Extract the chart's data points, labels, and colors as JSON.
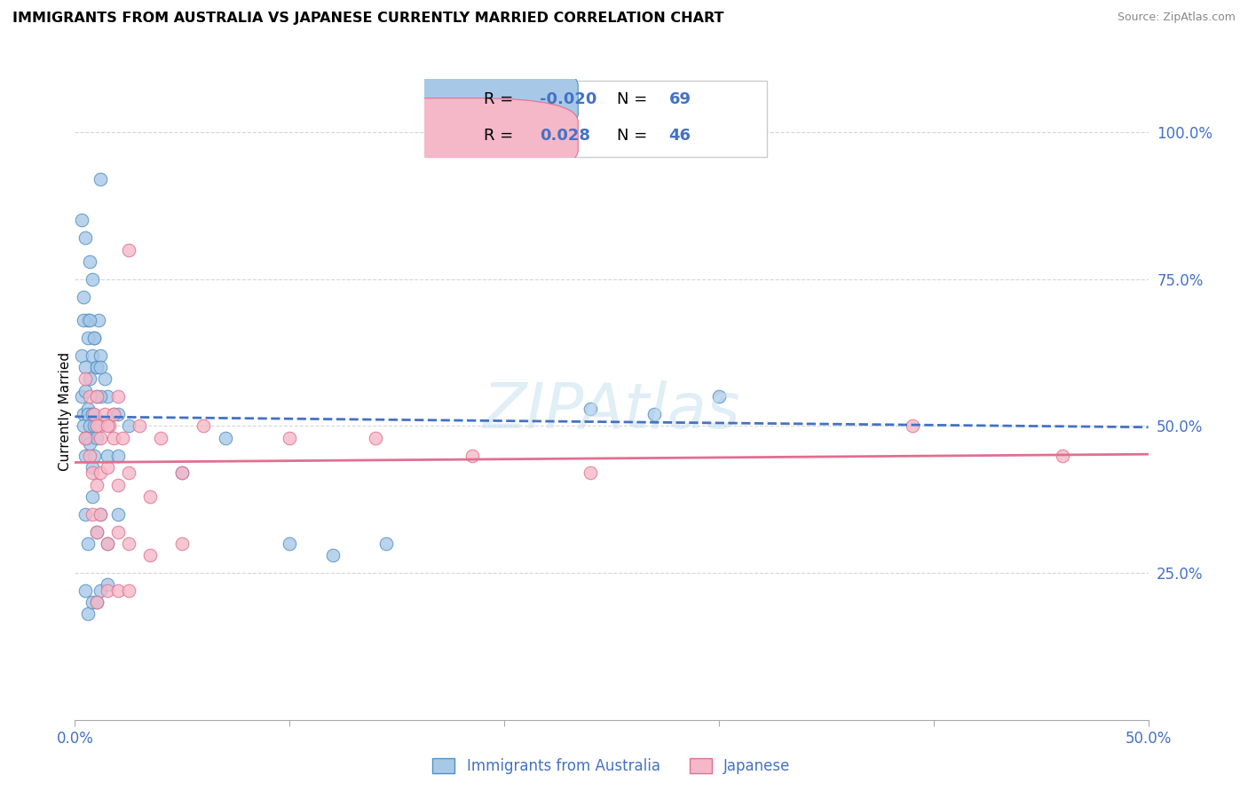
{
  "title": "IMMIGRANTS FROM AUSTRALIA VS JAPANESE CURRENTLY MARRIED CORRELATION CHART",
  "source": "Source: ZipAtlas.com",
  "ylabel": "Currently Married",
  "xlim": [
    0.0,
    0.5
  ],
  "ylim": [
    0.0,
    1.05
  ],
  "ytick_positions": [
    0.25,
    0.5,
    0.75,
    1.0
  ],
  "ytick_labels": [
    "25.0%",
    "50.0%",
    "75.0%",
    "100.0%"
  ],
  "blue_R": "-0.020",
  "blue_N": "69",
  "pink_R": "0.028",
  "pink_N": "46",
  "blue_fill": "#a8c8e8",
  "pink_fill": "#f4b8c8",
  "blue_edge": "#5090c0",
  "pink_edge": "#e07090",
  "blue_line": "#4472c4",
  "pink_line": "#e07090",
  "legend_label_blue": "Immigrants from Australia",
  "legend_label_pink": "Japanese",
  "grid_color": "#cccccc",
  "bg": "#ffffff",
  "blue_scatter_x": [
    0.003,
    0.004,
    0.005,
    0.006,
    0.007,
    0.008,
    0.009,
    0.01,
    0.011,
    0.012,
    0.003,
    0.004,
    0.005,
    0.006,
    0.007,
    0.008,
    0.009,
    0.01,
    0.012,
    0.014,
    0.003,
    0.004,
    0.005,
    0.006,
    0.007,
    0.008,
    0.01,
    0.012,
    0.015,
    0.018,
    0.004,
    0.005,
    0.006,
    0.007,
    0.008,
    0.009,
    0.01,
    0.012,
    0.02,
    0.025,
    0.005,
    0.006,
    0.007,
    0.008,
    0.009,
    0.01,
    0.015,
    0.02,
    0.05,
    0.07,
    0.005,
    0.006,
    0.008,
    0.01,
    0.012,
    0.015,
    0.02,
    0.1,
    0.12,
    0.145,
    0.005,
    0.006,
    0.008,
    0.01,
    0.012,
    0.015,
    0.24,
    0.27,
    0.3
  ],
  "blue_scatter_y": [
    0.85,
    0.72,
    0.82,
    0.68,
    0.78,
    0.75,
    0.65,
    0.6,
    0.68,
    0.92,
    0.62,
    0.68,
    0.6,
    0.65,
    0.68,
    0.62,
    0.65,
    0.6,
    0.62,
    0.58,
    0.55,
    0.52,
    0.56,
    0.53,
    0.58,
    0.52,
    0.55,
    0.6,
    0.55,
    0.52,
    0.5,
    0.48,
    0.52,
    0.5,
    0.52,
    0.5,
    0.5,
    0.55,
    0.52,
    0.5,
    0.45,
    0.48,
    0.47,
    0.43,
    0.45,
    0.48,
    0.45,
    0.45,
    0.42,
    0.48,
    0.35,
    0.3,
    0.38,
    0.32,
    0.35,
    0.3,
    0.35,
    0.3,
    0.28,
    0.3,
    0.22,
    0.18,
    0.2,
    0.2,
    0.22,
    0.23,
    0.53,
    0.52,
    0.55
  ],
  "pink_scatter_x": [
    0.005,
    0.007,
    0.009,
    0.01,
    0.012,
    0.014,
    0.016,
    0.018,
    0.02,
    0.025,
    0.005,
    0.007,
    0.01,
    0.012,
    0.015,
    0.018,
    0.022,
    0.03,
    0.04,
    0.06,
    0.008,
    0.01,
    0.012,
    0.015,
    0.02,
    0.025,
    0.035,
    0.05,
    0.1,
    0.14,
    0.008,
    0.01,
    0.012,
    0.015,
    0.02,
    0.025,
    0.035,
    0.05,
    0.185,
    0.24,
    0.01,
    0.015,
    0.02,
    0.025,
    0.39,
    0.46
  ],
  "pink_scatter_y": [
    0.58,
    0.55,
    0.52,
    0.55,
    0.5,
    0.52,
    0.5,
    0.52,
    0.55,
    0.8,
    0.48,
    0.45,
    0.5,
    0.48,
    0.5,
    0.48,
    0.48,
    0.5,
    0.48,
    0.5,
    0.42,
    0.4,
    0.42,
    0.43,
    0.4,
    0.42,
    0.38,
    0.42,
    0.48,
    0.48,
    0.35,
    0.32,
    0.35,
    0.3,
    0.32,
    0.3,
    0.28,
    0.3,
    0.45,
    0.42,
    0.2,
    0.22,
    0.22,
    0.22,
    0.5,
    0.45
  ],
  "blue_trend_x": [
    0.0,
    0.5
  ],
  "blue_trend_y": [
    0.516,
    0.498
  ],
  "pink_trend_x": [
    0.0,
    0.5
  ],
  "pink_trend_y": [
    0.438,
    0.452
  ],
  "tick_color": "#4472c4"
}
